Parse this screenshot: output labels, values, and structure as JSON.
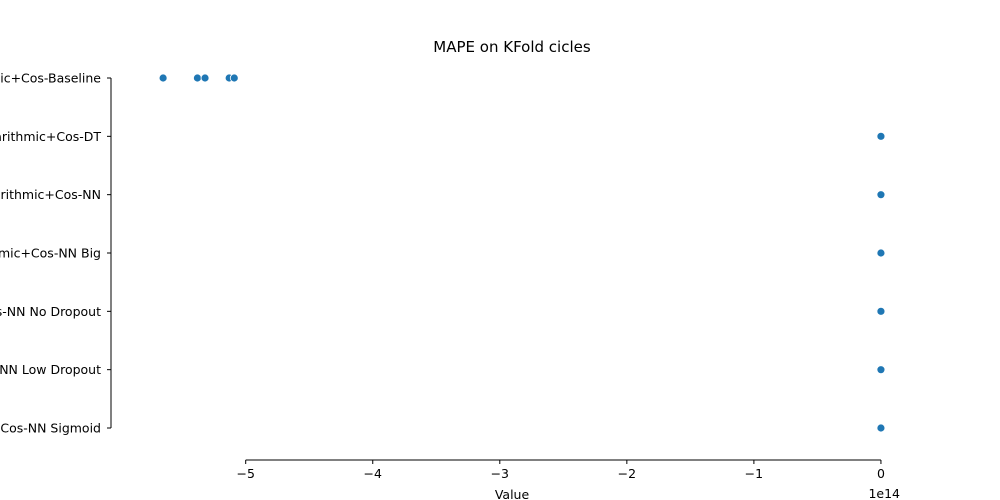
{
  "chart_data": {
    "type": "scatter",
    "title": "MAPE on KFold cicles",
    "xlabel": "Value",
    "ylabel": "",
    "x_offset_label": "1e14",
    "x_scale_factor": 100000000000000.0,
    "xlim": [
      -5.95,
      0.15
    ],
    "xticks": [
      -5,
      -4,
      -3,
      -2,
      -1,
      0
    ],
    "xtick_labels": [
      "−5",
      "−4",
      "−3",
      "−2",
      "−1",
      "0"
    ],
    "categories": [
      "Logarithmic+Cos-Baseline",
      "Logarithmic+Cos-DT",
      "Logarithmic+Cos-NN",
      "Logarithmic+Cos-NN Big",
      "Logarithmic+Cos-NN No Dropout",
      "Logarithmic+Cos-NN Low Dropout",
      "Logarithmic+Cos-NN Sigmoid"
    ],
    "series": [
      {
        "color": "#1f77b4",
        "points": [
          {
            "category": "Logarithmic+Cos-Baseline",
            "values": [
              -565000000000000.0,
              -538000000000000.0,
              -532000000000000.0,
              -513000000000000.0,
              -509000000000000.0
            ]
          },
          {
            "category": "Logarithmic+Cos-DT",
            "values": [
              0,
              0,
              0,
              0,
              0
            ]
          },
          {
            "category": "Logarithmic+Cos-NN",
            "values": [
              0,
              0,
              0,
              0,
              0
            ]
          },
          {
            "category": "Logarithmic+Cos-NN Big",
            "values": [
              0,
              0,
              0,
              0,
              0
            ]
          },
          {
            "category": "Logarithmic+Cos-NN No Dropout",
            "values": [
              -500000000000.0,
              0,
              0,
              0,
              0
            ]
          },
          {
            "category": "Logarithmic+Cos-NN Low Dropout",
            "values": [
              0,
              0,
              0,
              0,
              0
            ]
          },
          {
            "category": "Logarithmic+Cos-NN Sigmoid",
            "values": [
              -500000000000.0,
              0,
              0,
              0,
              0
            ]
          }
        ]
      }
    ],
    "grid": false,
    "legend": "none"
  }
}
